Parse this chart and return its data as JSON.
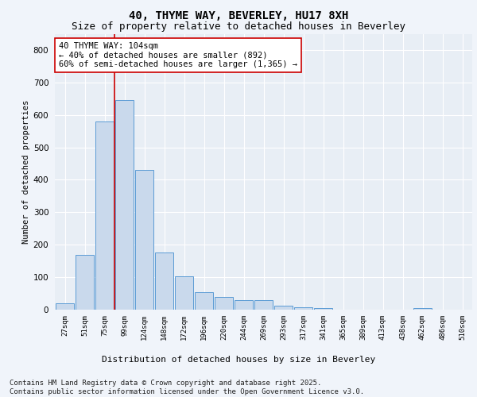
{
  "title1": "40, THYME WAY, BEVERLEY, HU17 8XH",
  "title2": "Size of property relative to detached houses in Beverley",
  "xlabel": "Distribution of detached houses by size in Beverley",
  "ylabel": "Number of detached properties",
  "bins": [
    "27sqm",
    "51sqm",
    "75sqm",
    "99sqm",
    "124sqm",
    "148sqm",
    "172sqm",
    "196sqm",
    "220sqm",
    "244sqm",
    "269sqm",
    "293sqm",
    "317sqm",
    "341sqm",
    "365sqm",
    "389sqm",
    "413sqm",
    "438sqm",
    "462sqm",
    "486sqm",
    "510sqm"
  ],
  "values": [
    20,
    170,
    580,
    645,
    430,
    175,
    103,
    55,
    38,
    30,
    30,
    12,
    8,
    5,
    0,
    0,
    0,
    0,
    5,
    0,
    0
  ],
  "bar_color": "#c9d9ec",
  "bar_edge_color": "#5b9bd5",
  "vline_x_index": 3,
  "vline_color": "#cc0000",
  "annotation_text": "40 THYME WAY: 104sqm\n← 40% of detached houses are smaller (892)\n60% of semi-detached houses are larger (1,365) →",
  "annotation_box_color": "#ffffff",
  "annotation_box_edge_color": "#cc0000",
  "ylim": [
    0,
    850
  ],
  "yticks": [
    0,
    100,
    200,
    300,
    400,
    500,
    600,
    700,
    800
  ],
  "fig_background": "#f0f4fa",
  "plot_background": "#e8eef5",
  "grid_color": "#ffffff",
  "footer": "Contains HM Land Registry data © Crown copyright and database right 2025.\nContains public sector information licensed under the Open Government Licence v3.0.",
  "title1_fontsize": 10,
  "title2_fontsize": 9,
  "annotation_fontsize": 7.5,
  "footer_fontsize": 6.5,
  "ylabel_fontsize": 7.5,
  "xlabel_fontsize": 8
}
